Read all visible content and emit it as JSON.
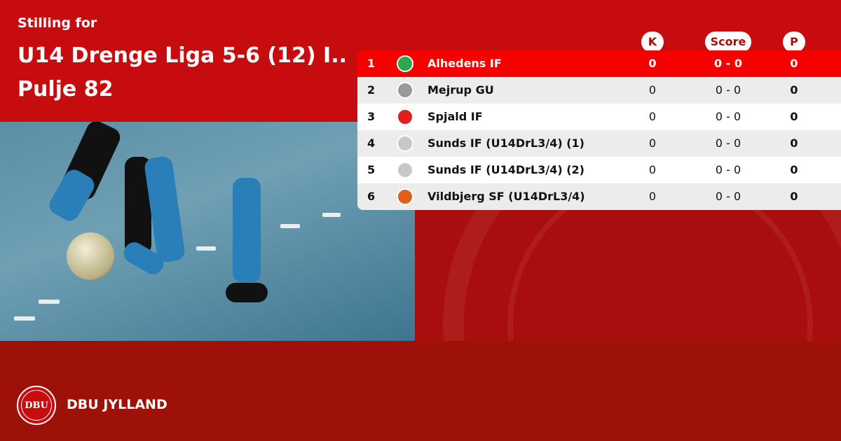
{
  "header": {
    "subtitle": "Stilling for",
    "title_line1": "U14 Drenge Liga 5-6 (12) I..",
    "title_line2": "Pulje 82"
  },
  "columns": {
    "k": "K",
    "score": "Score",
    "p": "P"
  },
  "colors": {
    "primary": "#c70c0f",
    "highlight": "#f70000",
    "footer": "#9e1108"
  },
  "standings": [
    {
      "rank": "1",
      "team": "Alhedens IF",
      "k": "0",
      "score": "0 - 0",
      "p": "0",
      "logo_color": "#2aa84a",
      "highlighted": true
    },
    {
      "rank": "2",
      "team": "Mejrup GU",
      "k": "0",
      "score": "0 - 0",
      "p": "0",
      "logo_color": "#9a9a9a"
    },
    {
      "rank": "3",
      "team": "Spjald IF",
      "k": "0",
      "score": "0 - 0",
      "p": "0",
      "logo_color": "#e02020"
    },
    {
      "rank": "4",
      "team": "Sunds IF (U14DrL3/4) (1)",
      "k": "0",
      "score": "0 - 0",
      "p": "0",
      "logo_color": "#c8c8c8"
    },
    {
      "rank": "5",
      "team": "Sunds IF (U14DrL3/4) (2)",
      "k": "0",
      "score": "0 - 0",
      "p": "0",
      "logo_color": "#c8c8c8"
    },
    {
      "rank": "6",
      "team": "Vildbjerg SF (U14DrL3/4)",
      "k": "0",
      "score": "0 - 0",
      "p": "0",
      "logo_color": "#e0601a"
    }
  ],
  "footer": {
    "logo_text": "DBU",
    "org": "DBU JYLLAND"
  }
}
